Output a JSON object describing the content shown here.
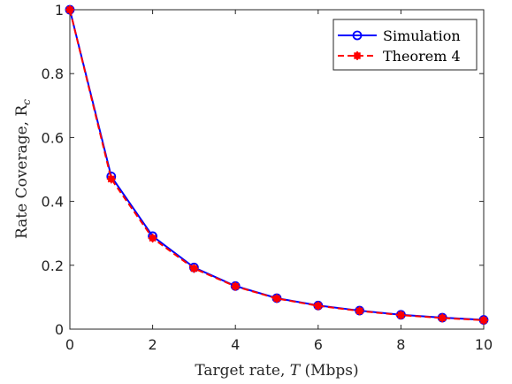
{
  "chart_data": {
    "type": "line",
    "xlabel": "Target rate, T (Mbps)",
    "xlabel_parts": {
      "pre": "Target rate, ",
      "var": "T",
      "post": " (Mbps)"
    },
    "ylabel": "Rate Coverage, Rc",
    "ylabel_parts": {
      "pre": "Rate Coverage, ",
      "var": "R",
      "sub": "c"
    },
    "xlim": [
      0,
      10
    ],
    "ylim": [
      0,
      1
    ],
    "xticks": [
      0,
      2,
      4,
      6,
      8,
      10
    ],
    "yticks": [
      0,
      0.2,
      0.4,
      0.6,
      0.8,
      1
    ],
    "xtick_labels": [
      "0",
      "2",
      "4",
      "6",
      "8",
      "10"
    ],
    "ytick_labels": [
      "0",
      "0.2",
      "0.4",
      "0.6",
      "0.8",
      "1"
    ],
    "grid": false,
    "legend_position": "top-right",
    "x": [
      0,
      1,
      2,
      3,
      4,
      5,
      6,
      7,
      8,
      9,
      10
    ],
    "series": [
      {
        "name": "Simulation",
        "values": [
          1.0,
          0.478,
          0.291,
          0.193,
          0.135,
          0.097,
          0.074,
          0.058,
          0.045,
          0.036,
          0.029
        ],
        "color": "#0000ff",
        "style": "solid",
        "marker": "circle"
      },
      {
        "name": "Theorem 4",
        "values": [
          1.0,
          0.47,
          0.285,
          0.19,
          0.134,
          0.096,
          0.073,
          0.057,
          0.044,
          0.035,
          0.028
        ],
        "color": "#ff0000",
        "style": "dashed",
        "marker": "asterisk"
      }
    ]
  }
}
